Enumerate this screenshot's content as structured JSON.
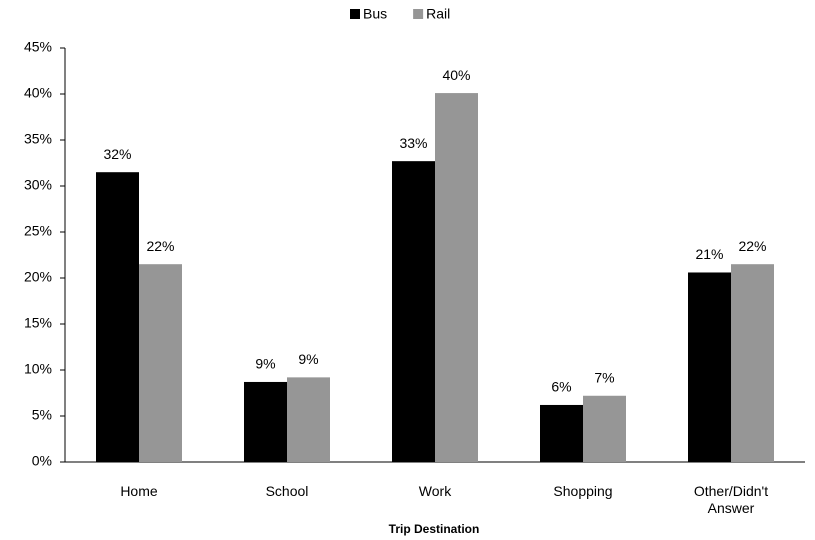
{
  "chart_data": {
    "type": "bar",
    "x_label": "Trip Destination",
    "categories": [
      "Home",
      "School",
      "Work",
      "Shopping",
      "Other/Didn't Answer"
    ],
    "series": [
      {
        "name": "Bus",
        "color": "#000000",
        "values": [
          31.5,
          8.7,
          32.7,
          6.2,
          20.6
        ],
        "value_labels": [
          "32%",
          "9%",
          "33%",
          "6%",
          "21%"
        ]
      },
      {
        "name": "Rail",
        "color": "#969696",
        "values": [
          21.5,
          9.2,
          40.1,
          7.2,
          21.5
        ],
        "value_labels": [
          "22%",
          "9%",
          "40%",
          "7%",
          "22%"
        ]
      }
    ],
    "ylim": [
      0,
      45
    ],
    "yticks": [
      {
        "value": 0,
        "label": "0%"
      },
      {
        "value": 5,
        "label": "5%"
      },
      {
        "value": 10,
        "label": "10%"
      },
      {
        "value": 15,
        "label": "15%"
      },
      {
        "value": 20,
        "label": "20%"
      },
      {
        "value": 25,
        "label": "25%"
      },
      {
        "value": 30,
        "label": "30%"
      },
      {
        "value": 35,
        "label": "35%"
      },
      {
        "value": 40,
        "label": "40%"
      },
      {
        "value": 45,
        "label": "45%"
      }
    ],
    "grid": false,
    "legend": "top"
  }
}
